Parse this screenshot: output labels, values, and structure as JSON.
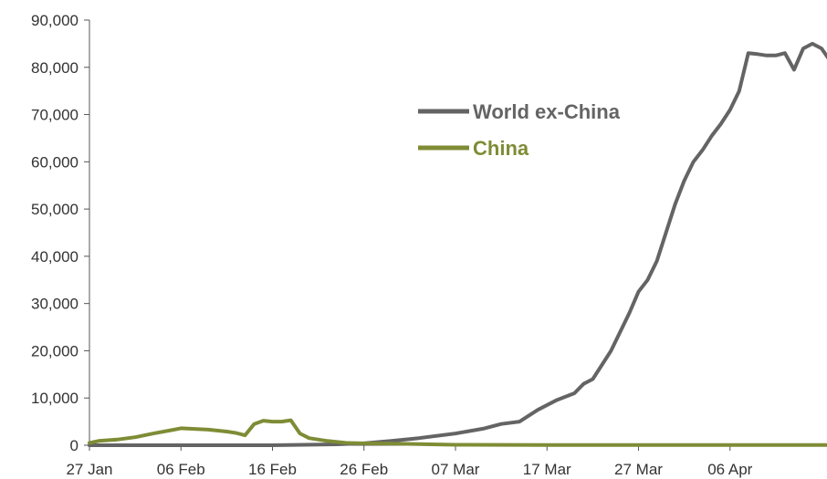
{
  "chart_data": {
    "type": "line",
    "title": "",
    "xlabel": "",
    "ylabel": "",
    "ylim": [
      0,
      90000
    ],
    "yticks": [
      0,
      10000,
      20000,
      30000,
      40000,
      50000,
      60000,
      70000,
      80000,
      90000
    ],
    "ytick_labels": [
      "0",
      "10,000",
      "20,000",
      "30,000",
      "40,000",
      "50,000",
      "60,000",
      "70,000",
      "80,000",
      "90,000"
    ],
    "xlim": [
      "2020-01-27",
      "2020-04-15"
    ],
    "xticks": [
      "2020-01-27",
      "2020-02-06",
      "2020-02-16",
      "2020-02-26",
      "2020-03-07",
      "2020-03-17",
      "2020-03-27",
      "2020-04-06"
    ],
    "xtick_labels": [
      "27 Jan",
      "06 Feb",
      "16 Feb",
      "26 Feb",
      "07 Mar",
      "17 Mar",
      "27 Mar",
      "06 Apr"
    ],
    "grid": false,
    "legend": "inside upper center",
    "series": [
      {
        "name": "World ex-China",
        "color": "#646464",
        "points": [
          [
            "2020-01-27",
            0
          ],
          [
            "2020-02-06",
            0
          ],
          [
            "2020-02-16",
            0
          ],
          [
            "2020-02-23",
            200
          ],
          [
            "2020-02-26",
            400
          ],
          [
            "2020-02-29",
            900
          ],
          [
            "2020-03-03",
            1500
          ],
          [
            "2020-03-07",
            2500
          ],
          [
            "2020-03-10",
            3500
          ],
          [
            "2020-03-12",
            4500
          ],
          [
            "2020-03-14",
            5000
          ],
          [
            "2020-03-16",
            7500
          ],
          [
            "2020-03-18",
            9500
          ],
          [
            "2020-03-20",
            11000
          ],
          [
            "2020-03-21",
            13000
          ],
          [
            "2020-03-22",
            14000
          ],
          [
            "2020-03-23",
            17000
          ],
          [
            "2020-03-24",
            20000
          ],
          [
            "2020-03-26",
            28000
          ],
          [
            "2020-03-27",
            32500
          ],
          [
            "2020-03-28",
            35000
          ],
          [
            "2020-03-29",
            39000
          ],
          [
            "2020-03-30",
            45000
          ],
          [
            "2020-03-31",
            51000
          ],
          [
            "2020-04-01",
            56000
          ],
          [
            "2020-04-02",
            60000
          ],
          [
            "2020-04-03",
            62500
          ],
          [
            "2020-04-04",
            65500
          ],
          [
            "2020-04-05",
            68000
          ],
          [
            "2020-04-06",
            71000
          ],
          [
            "2020-04-07",
            75000
          ],
          [
            "2020-04-08",
            83000
          ],
          [
            "2020-04-09",
            82800
          ],
          [
            "2020-04-10",
            82500
          ],
          [
            "2020-04-11",
            82500
          ],
          [
            "2020-04-12",
            83000
          ],
          [
            "2020-04-13",
            79500
          ],
          [
            "2020-04-14",
            84000
          ],
          [
            "2020-04-15",
            85000
          ],
          [
            "2020-04-16",
            84000
          ],
          [
            "2020-04-17",
            81200
          ]
        ]
      },
      {
        "name": "China",
        "color": "#7F8C35",
        "points": [
          [
            "2020-01-27",
            500
          ],
          [
            "2020-01-28",
            900
          ],
          [
            "2020-01-30",
            1200
          ],
          [
            "2020-02-01",
            1700
          ],
          [
            "2020-02-03",
            2500
          ],
          [
            "2020-02-05",
            3200
          ],
          [
            "2020-02-06",
            3600
          ],
          [
            "2020-02-07",
            3500
          ],
          [
            "2020-02-09",
            3300
          ],
          [
            "2020-02-11",
            2900
          ],
          [
            "2020-02-12",
            2600
          ],
          [
            "2020-02-13",
            2100
          ],
          [
            "2020-02-14",
            4500
          ],
          [
            "2020-02-15",
            5200
          ],
          [
            "2020-02-16",
            5000
          ],
          [
            "2020-02-17",
            5000
          ],
          [
            "2020-02-18",
            5300
          ],
          [
            "2020-02-19",
            2500
          ],
          [
            "2020-02-20",
            1500
          ],
          [
            "2020-02-22",
            900
          ],
          [
            "2020-02-24",
            500
          ],
          [
            "2020-02-26",
            400
          ],
          [
            "2020-03-01",
            300
          ],
          [
            "2020-03-07",
            100
          ],
          [
            "2020-03-17",
            50
          ],
          [
            "2020-03-27",
            50
          ],
          [
            "2020-04-06",
            50
          ],
          [
            "2020-04-17",
            50
          ]
        ]
      }
    ]
  }
}
